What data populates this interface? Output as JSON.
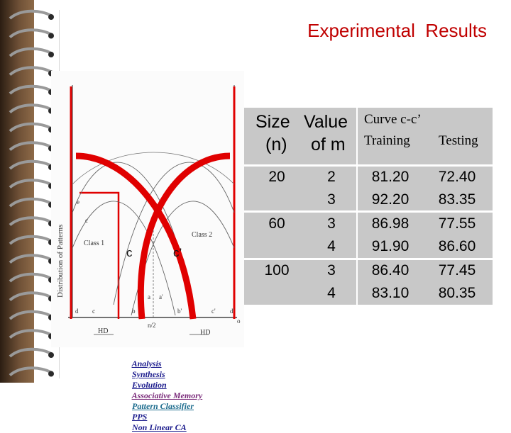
{
  "slide": {
    "title": "Experimental  Results"
  },
  "figure": {
    "y_axis_label": "Distribution  of Patterns",
    "class1_label": "Class 1",
    "class2_label": "Class 2",
    "c_label": "c",
    "c_prime_label": "c’",
    "axis_letters": [
      "d",
      "c",
      "b",
      "a",
      "a'",
      "b'",
      "c'",
      "d'",
      "o"
    ],
    "left_x_marks": [
      "e",
      "c"
    ],
    "center_label": "n/2",
    "hd_left": "HD",
    "hd_right": "HD"
  },
  "table": {
    "headers": {
      "size": "Size",
      "size_sub": "(n)",
      "value": "Value",
      "value_sub": "of m",
      "curve": "Curve c-c’",
      "training": "Training",
      "testing": "Testing"
    },
    "rows": [
      {
        "size": "20",
        "m": "2",
        "training": "81.20",
        "testing": "72.40"
      },
      {
        "size": "",
        "m": "3",
        "training": "92.20",
        "testing": "83.35"
      },
      {
        "size": "60",
        "m": "3",
        "training": "86.98",
        "testing": "77.55"
      },
      {
        "size": "",
        "m": "4",
        "training": "91.90",
        "testing": "86.60"
      },
      {
        "size": "100",
        "m": "3",
        "training": "86.40",
        "testing": "77.45"
      },
      {
        "size": "",
        "m": "4",
        "training": "83.10",
        "testing": "80.35"
      }
    ]
  },
  "footer": {
    "analysis": "Analysis",
    "synthesis": "Synthesis",
    "evolution": "Evolution",
    "associative_memory": "Associative Memory",
    "pattern_classifier": "Pattern Classifier",
    "pps": "PPS",
    "non_linear_ca": "Non Linear CA"
  },
  "colors": {
    "title": "#c00000",
    "curve": "#e00000",
    "table_bg": "#c8c8c8",
    "footer_main": "#1a1a8c",
    "footer_associative": "#7a2a7a",
    "footer_pattern": "#1a6a8c"
  }
}
